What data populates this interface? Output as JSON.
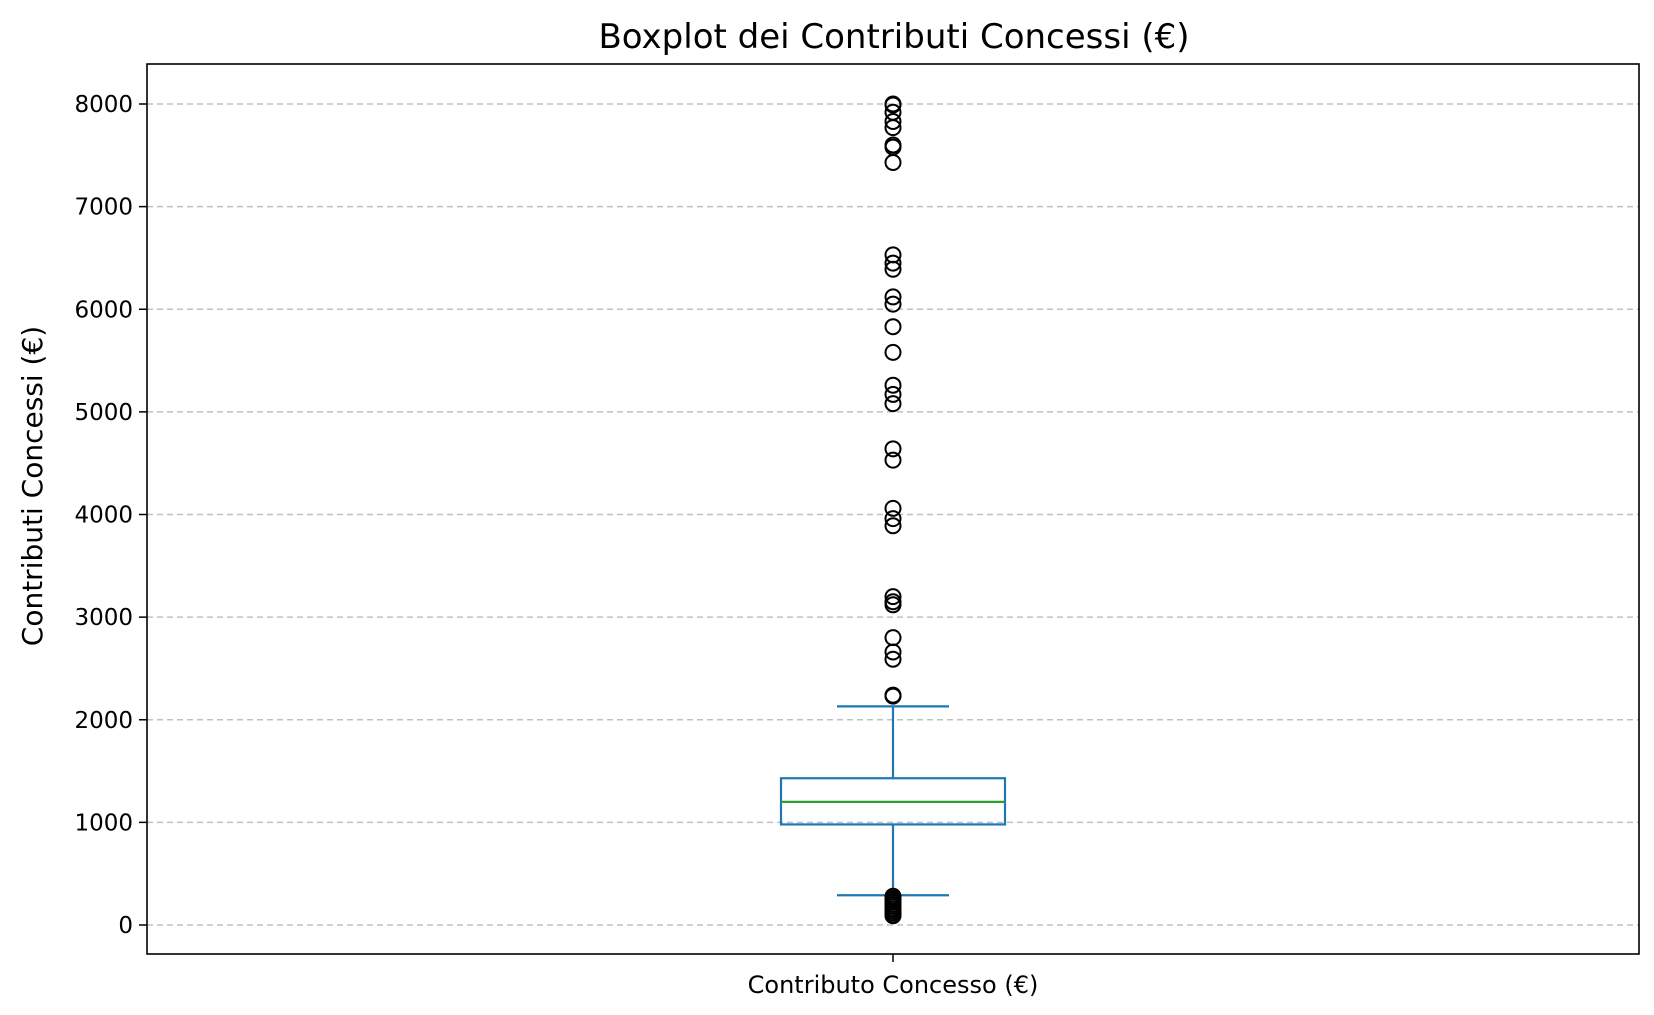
{
  "chart_data": {
    "type": "box",
    "title": "Boxplot dei Contributi Concessi (€)",
    "ylabel": "Contributi Concessi (€)",
    "xlabel": "",
    "categories": [
      "Contributo Concesso (€)"
    ],
    "ylim": [
      -300,
      8400
    ],
    "yticks": [
      0,
      1000,
      2000,
      3000,
      4000,
      5000,
      6000,
      7000,
      8000
    ],
    "grid": "y-dashed",
    "series": [
      {
        "box": {
          "whisker_low": 290,
          "q1": 980,
          "median": 1200,
          "q3": 1430,
          "whisker_high": 2130
        },
        "outliers": [
          8000,
          7990,
          7920,
          7830,
          7770,
          7600,
          7580,
          7430,
          6530,
          6450,
          6390,
          6120,
          6050,
          5830,
          5580,
          5260,
          5170,
          5080,
          4640,
          4530,
          4060,
          3960,
          3890,
          3200,
          3150,
          3120,
          2800,
          2660,
          2590,
          2240,
          2230,
          280,
          260,
          240,
          220,
          200,
          180,
          160,
          140,
          120,
          100,
          90
        ]
      }
    ],
    "colors": {
      "box": "#1f77b4",
      "median": "#2ca02c",
      "grid": "#c0c0c0",
      "outlier": "#000000"
    }
  }
}
